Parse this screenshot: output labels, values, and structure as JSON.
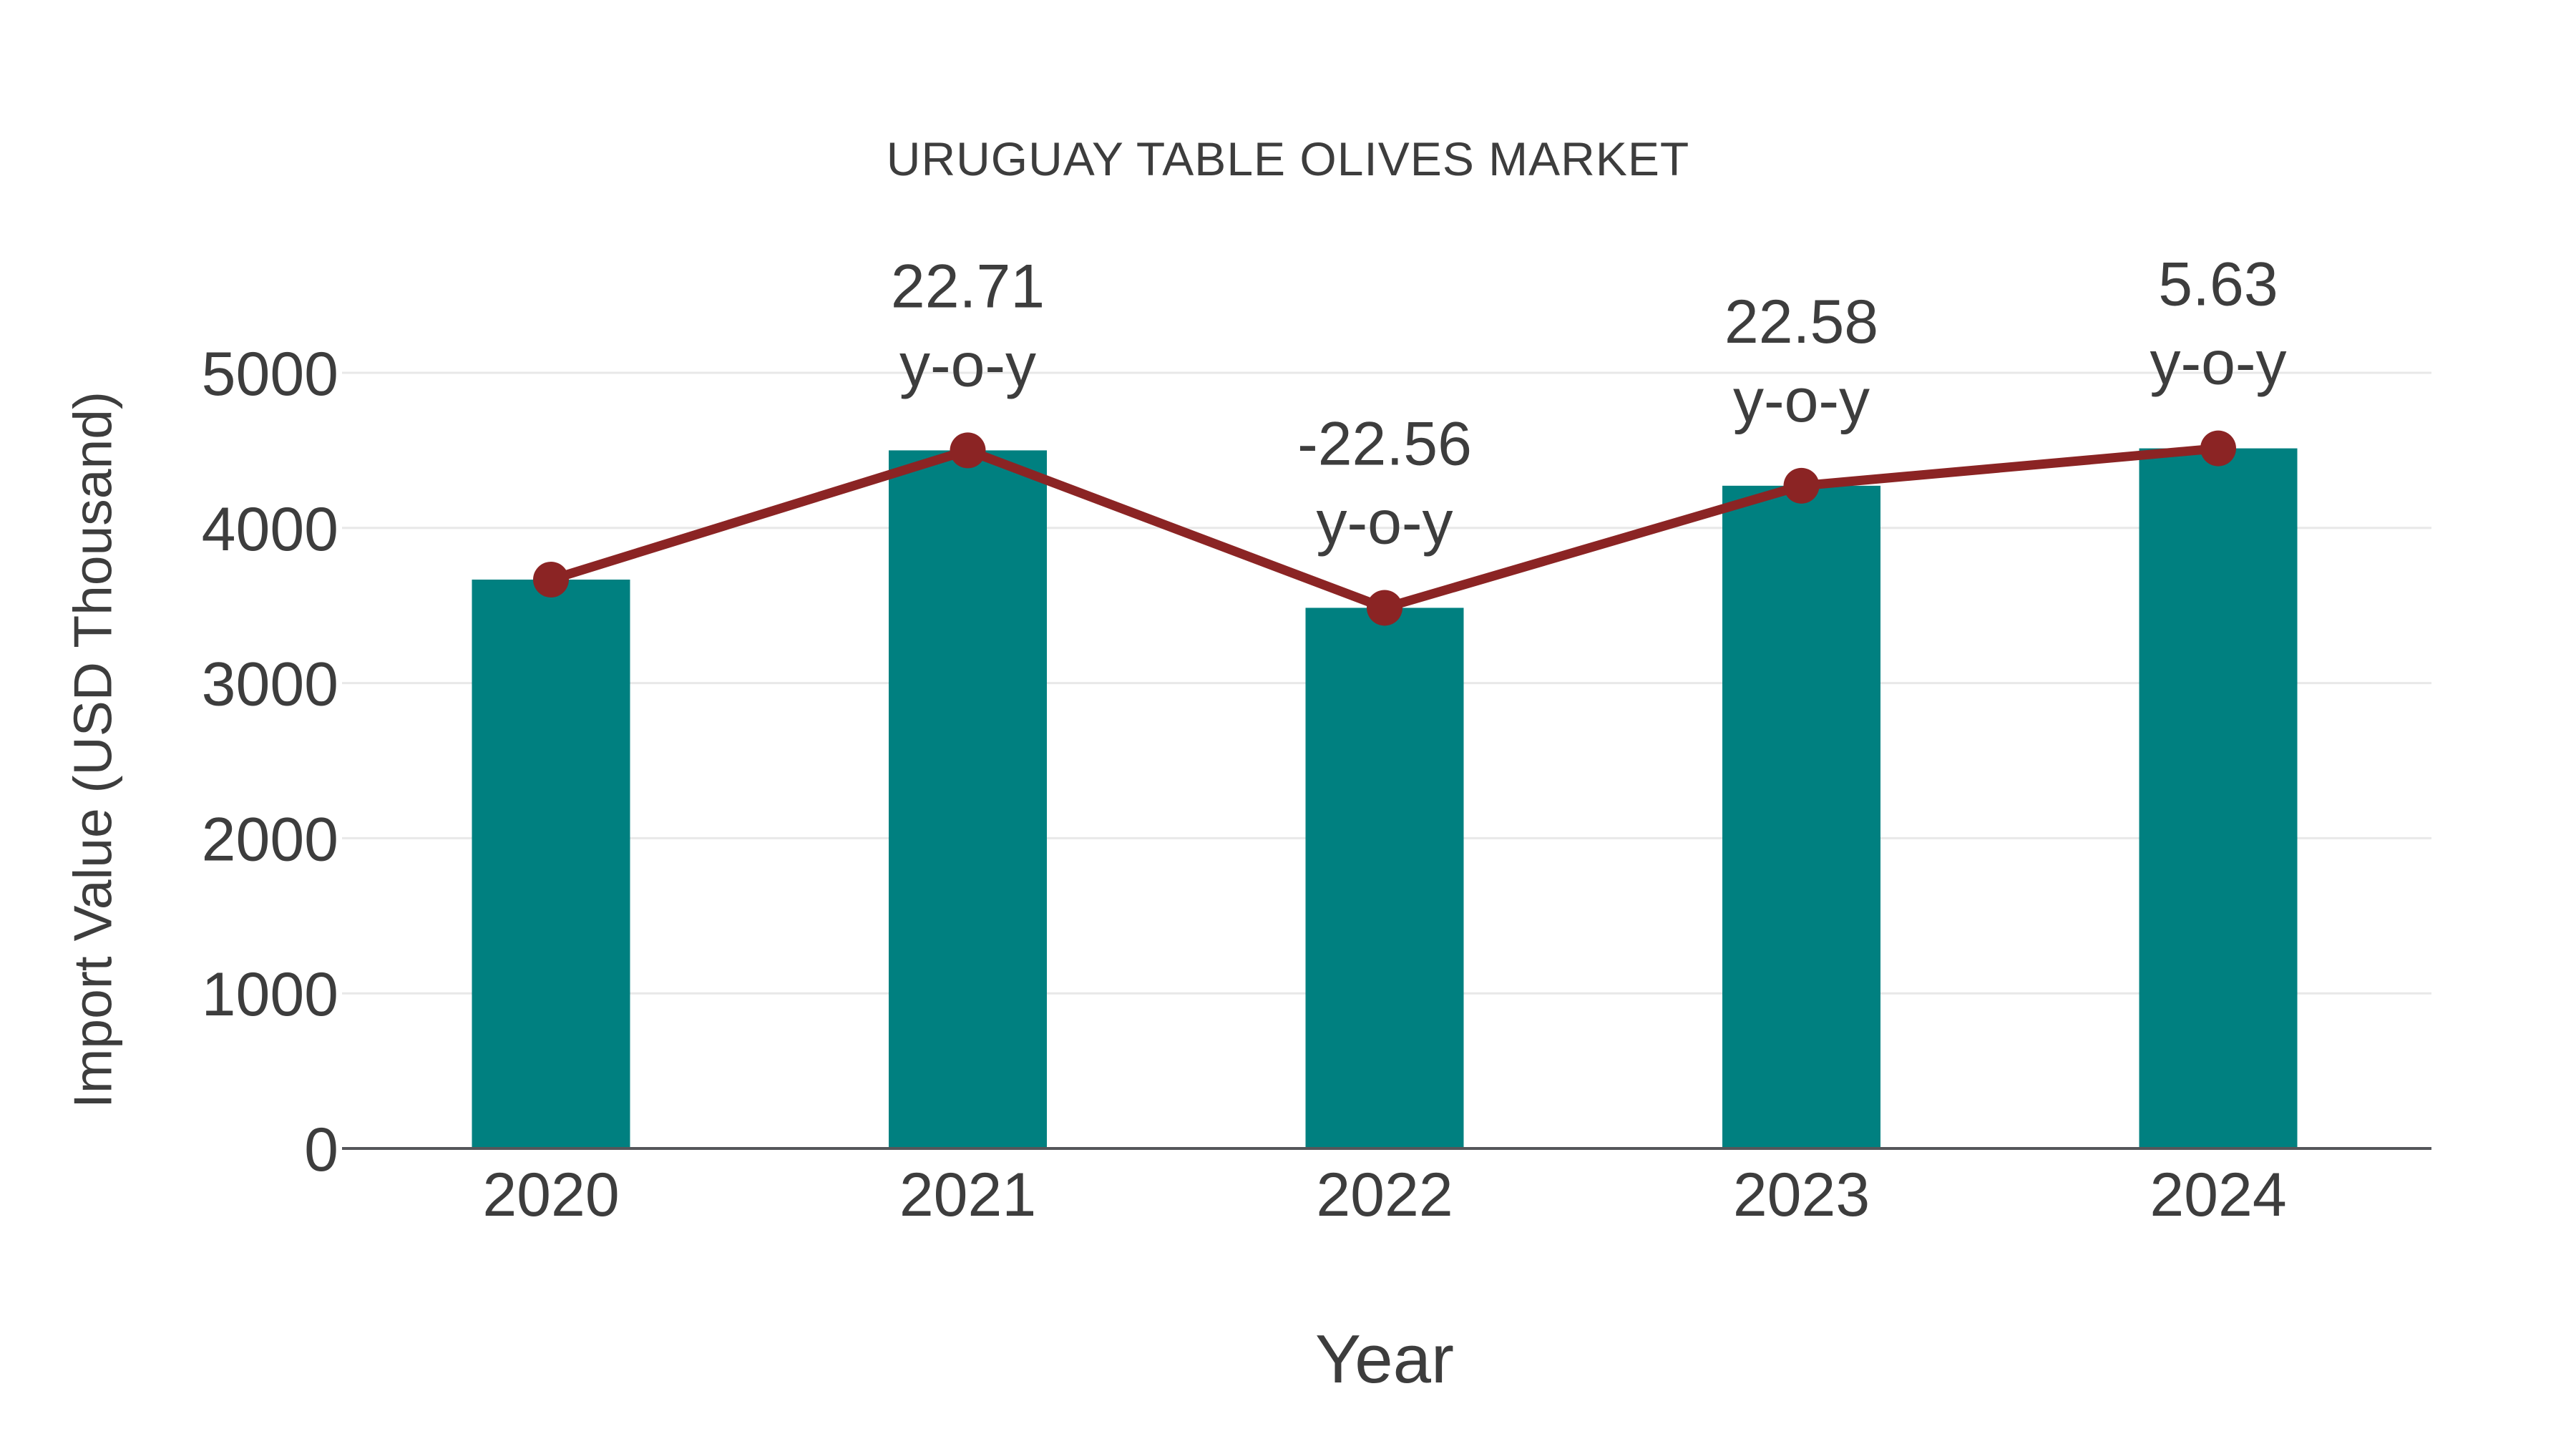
{
  "page": {
    "background": "#ffffff"
  },
  "chart_data": {
    "type": "combo",
    "title": "URUGUAY TABLE OLIVES MARKET",
    "xlabel": "Year",
    "ylabel": "Import Value (USD Thousand)",
    "categories": [
      "2020",
      "2021",
      "2022",
      "2023",
      "2024"
    ],
    "series": [
      {
        "name": "Import Value",
        "type": "bar",
        "color": "#008080",
        "values": [
          3667,
          4500,
          3485,
          4272,
          4513
        ]
      },
      {
        "name": "y-o-y change",
        "type": "line",
        "color": "#8B2424",
        "values": [
          3667,
          4500,
          3485,
          4272,
          4513
        ],
        "point_labels": [
          "",
          "22.71",
          "-22.56",
          "22.58",
          "5.63"
        ],
        "point_label_suffix": "y-o-y"
      }
    ],
    "ylim": [
      0,
      5000
    ],
    "yticks": [
      0,
      1000,
      2000,
      3000,
      4000,
      5000
    ],
    "grid": true,
    "legend": false,
    "colors": {
      "grid": "#e8e8e8",
      "axis": "#55565a",
      "text": "#3d3d3d"
    }
  }
}
